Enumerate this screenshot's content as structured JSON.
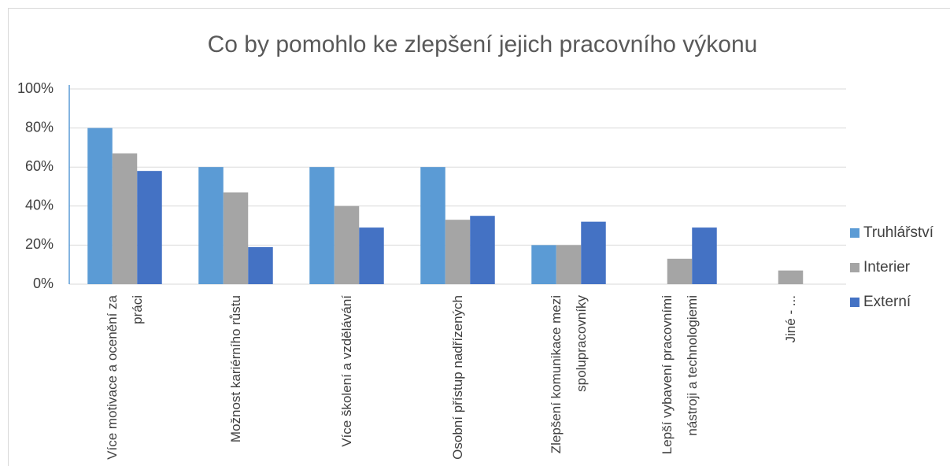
{
  "chart_data": {
    "type": "bar",
    "title": "Co by pomohlo ke zlepšení jejich pracovního výkonu",
    "categories": [
      "Více motivace a ocenění za práci",
      "Možnost kariérního růstu",
      "Více školení a vzdělávání",
      "Osobní přístup nadřízených",
      "Zlepšení komunikace mezi spolupracovníky",
      "Lepší vybavení pracovními nástroji a technologiemi",
      "Jiné - ..."
    ],
    "series": [
      {
        "name": "Truhlářství",
        "color": "#5b9bd5",
        "values": [
          80,
          60,
          60,
          60,
          20,
          0,
          0
        ]
      },
      {
        "name": "Interier",
        "color": "#a5a5a5",
        "values": [
          67,
          47,
          40,
          33,
          20,
          13,
          7
        ]
      },
      {
        "name": "Externí",
        "color": "#4472c4",
        "values": [
          58,
          19,
          29,
          35,
          32,
          29,
          0
        ]
      }
    ],
    "ylim": [
      0,
      100
    ],
    "yticks": [
      {
        "value": 0,
        "label": "0%"
      },
      {
        "value": 20,
        "label": "20%"
      },
      {
        "value": 40,
        "label": "40%"
      },
      {
        "value": 60,
        "label": "60%"
      },
      {
        "value": 80,
        "label": "80%"
      },
      {
        "value": 100,
        "label": "100%"
      }
    ],
    "grid": true,
    "legend": "right"
  }
}
